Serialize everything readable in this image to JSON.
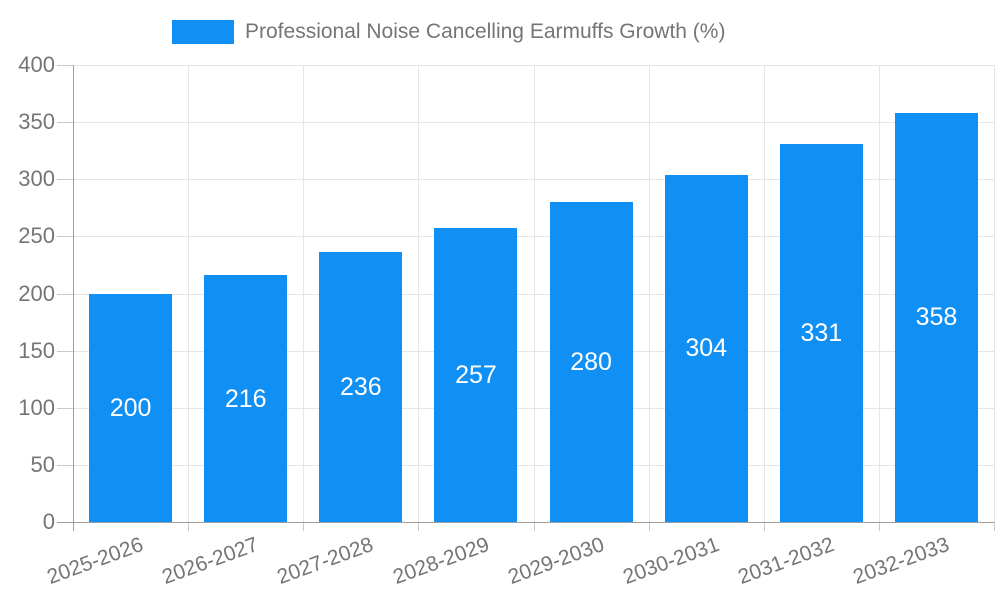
{
  "chart_data": {
    "type": "bar",
    "title": "",
    "legend_label": "Professional Noise Cancelling Earmuffs Growth (%)",
    "legend_position": "top-center",
    "categories": [
      "2025-2026",
      "2026-2027",
      "2027-2028",
      "2028-2029",
      "2029-2030",
      "2030-2031",
      "2031-2032",
      "2032-2033"
    ],
    "values": [
      200,
      216,
      236,
      257,
      280,
      304,
      331,
      358
    ],
    "xlabel": "",
    "ylabel": "",
    "ylim": [
      0,
      400
    ],
    "yticks": [
      0,
      50,
      100,
      150,
      200,
      250,
      300,
      350,
      400
    ],
    "grid": true,
    "bar_color": "#1090f4",
    "grid_color": "#e6e6e6",
    "axis_color": "#9e9e9e",
    "tick_color": "#c9c9c9",
    "axis_text_color": "#757575",
    "value_label_color": "#ffffff"
  }
}
